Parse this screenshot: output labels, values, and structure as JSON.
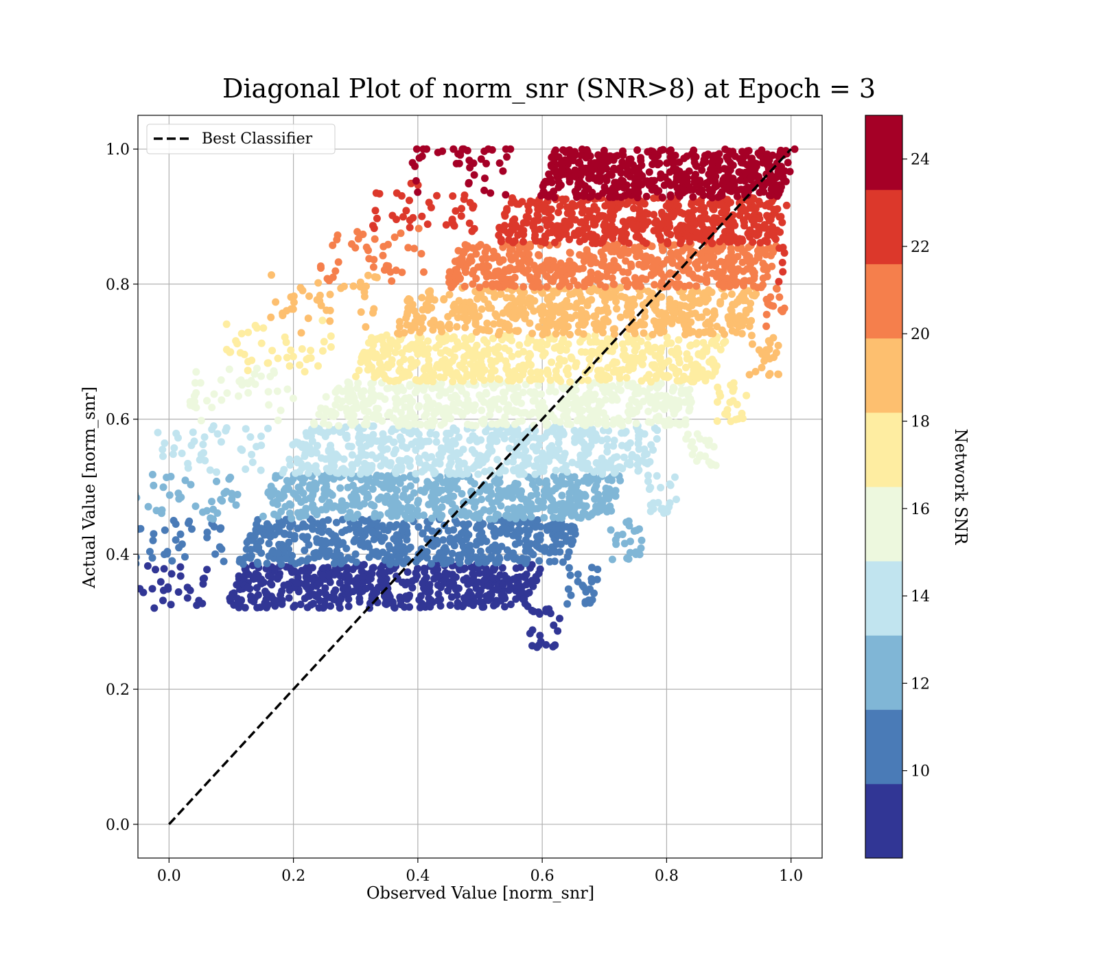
{
  "chart_data": {
    "type": "scatter",
    "title": "Diagonal Plot of norm_snr (SNR>8) at Epoch = 3",
    "xlabel": "Observed Value [norm_snr]",
    "ylabel": "Actual Value [norm_snr]",
    "xlim": [
      -0.05,
      1.05
    ],
    "ylim": [
      -0.05,
      1.05
    ],
    "xticks": [
      "0.0",
      "0.2",
      "0.4",
      "0.6",
      "0.8",
      "1.0"
    ],
    "yticks": [
      "0.0",
      "0.2",
      "0.4",
      "0.6",
      "0.8",
      "1.0"
    ],
    "grid": true,
    "legend": {
      "placement": "upper-left",
      "entries": [
        "Best Classifier"
      ]
    },
    "reference_line": {
      "name": "Best Classifier",
      "style": "dashed",
      "color": "#000000",
      "x": [
        0.0,
        1.0
      ],
      "y": [
        0.0,
        1.0
      ]
    },
    "colorbar": {
      "label": "Network SNR",
      "range": [
        8,
        25
      ],
      "ticks": [
        "10",
        "12",
        "14",
        "16",
        "18",
        "20",
        "22",
        "24"
      ],
      "colors": [
        "#313695",
        "#4a7bb7",
        "#80b6d6",
        "#c1e4ef",
        "#edf8de",
        "#feeda1",
        "#fdbf6f",
        "#f57f4c",
        "#dc382b",
        "#a50026"
      ]
    },
    "bands": [
      {
        "snr_range": [
          8.0,
          9.7
        ],
        "y_range": [
          0.32,
          0.385
        ],
        "x_range": [
          0.09,
          0.58
        ],
        "color": "#313695"
      },
      {
        "snr_range": [
          9.7,
          11.4
        ],
        "y_range": [
          0.385,
          0.452
        ],
        "x_range": [
          0.11,
          0.64
        ],
        "color": "#4a7bb7"
      },
      {
        "snr_range": [
          11.4,
          13.1
        ],
        "y_range": [
          0.452,
          0.518
        ],
        "x_range": [
          0.14,
          0.71
        ],
        "color": "#80b6d6"
      },
      {
        "snr_range": [
          13.1,
          14.8
        ],
        "y_range": [
          0.518,
          0.59
        ],
        "x_range": [
          0.18,
          0.77
        ],
        "color": "#c1e4ef"
      },
      {
        "snr_range": [
          14.8,
          16.5
        ],
        "y_range": [
          0.59,
          0.655
        ],
        "x_range": [
          0.23,
          0.83
        ],
        "color": "#edf8de"
      },
      {
        "snr_range": [
          16.5,
          18.2
        ],
        "y_range": [
          0.655,
          0.725
        ],
        "x_range": [
          0.29,
          0.88
        ],
        "color": "#feeda1"
      },
      {
        "snr_range": [
          18.2,
          19.9
        ],
        "y_range": [
          0.725,
          0.795
        ],
        "x_range": [
          0.36,
          0.93
        ],
        "color": "#fdbf6f"
      },
      {
        "snr_range": [
          19.9,
          21.6
        ],
        "y_range": [
          0.795,
          0.86
        ],
        "x_range": [
          0.44,
          0.96
        ],
        "color": "#f57f4c"
      },
      {
        "snr_range": [
          21.6,
          23.3
        ],
        "y_range": [
          0.86,
          0.928
        ],
        "x_range": [
          0.52,
          0.98
        ],
        "color": "#dc382b"
      },
      {
        "snr_range": [
          23.3,
          25.0
        ],
        "y_range": [
          0.928,
          1.0
        ],
        "x_range": [
          0.59,
          0.99
        ],
        "color": "#a50026"
      }
    ]
  }
}
